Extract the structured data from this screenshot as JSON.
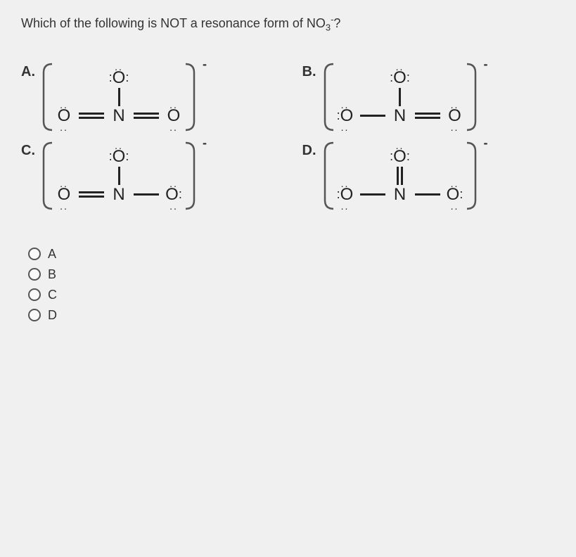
{
  "question_prefix": "Which of the following is NOT a resonance form of NO",
  "question_sub": "3",
  "question_sup": "-",
  "question_suffix": "?",
  "charge_symbol": "-",
  "atoms": {
    "O": "O",
    "N": "N"
  },
  "colors": {
    "page_bg": "#f0f0f0",
    "text": "#222222",
    "bond": "#222222",
    "bracket": "#555555"
  },
  "structures": {
    "A": {
      "label": "A.",
      "top": {
        "atom": "O",
        "lone_pairs": [
          "top",
          "left",
          "right"
        ],
        "vbond": 1
      },
      "left": {
        "atom": "O",
        "lone_pairs": [
          "top",
          "bottom"
        ],
        "bond_to_N": 2
      },
      "right": {
        "atom": "O",
        "lone_pairs": [
          "top",
          "bottom"
        ],
        "bond_to_N": 2
      }
    },
    "B": {
      "label": "B.",
      "top": {
        "atom": "O",
        "lone_pairs": [
          "top",
          "left",
          "right"
        ],
        "vbond": 1
      },
      "left": {
        "atom": "O",
        "lone_pairs": [
          "top",
          "bottom",
          "left"
        ],
        "bond_to_N": 1
      },
      "right": {
        "atom": "O",
        "lone_pairs": [
          "top",
          "bottom"
        ],
        "bond_to_N": 2
      }
    },
    "C": {
      "label": "C.",
      "top": {
        "atom": "O",
        "lone_pairs": [
          "top",
          "left",
          "right"
        ],
        "vbond": 1
      },
      "left": {
        "atom": "O",
        "lone_pairs": [
          "top",
          "bottom"
        ],
        "bond_to_N": 2
      },
      "right": {
        "atom": "O",
        "lone_pairs": [
          "top",
          "bottom",
          "right"
        ],
        "bond_to_N": 1
      }
    },
    "D": {
      "label": "D.",
      "top": {
        "atom": "O",
        "lone_pairs": [
          "top",
          "left",
          "right"
        ],
        "vbond": 2
      },
      "left": {
        "atom": "O",
        "lone_pairs": [
          "top",
          "bottom",
          "left"
        ],
        "bond_to_N": 1
      },
      "right": {
        "atom": "O",
        "lone_pairs": [
          "top",
          "bottom",
          "right"
        ],
        "bond_to_N": 1
      }
    }
  },
  "options": [
    "A",
    "B",
    "C",
    "D"
  ]
}
